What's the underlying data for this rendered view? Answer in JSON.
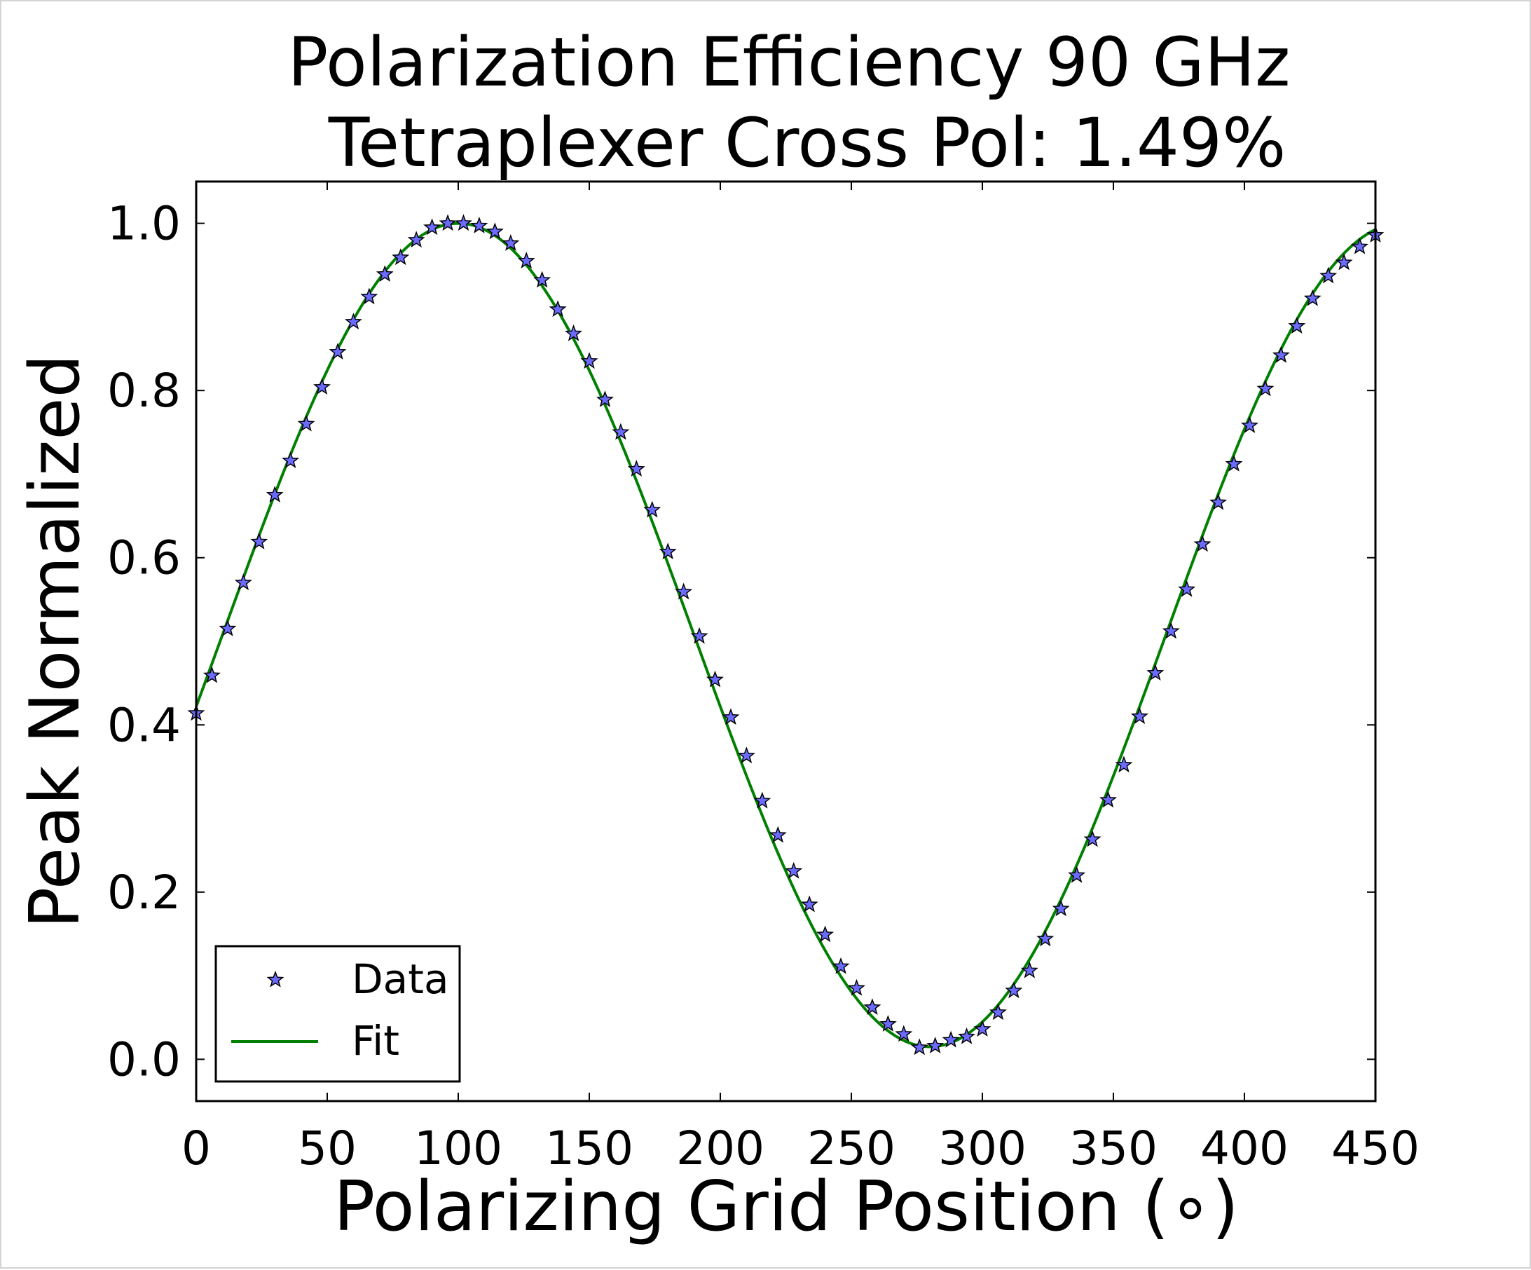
{
  "chart_data": {
    "type": "line",
    "title": "Polarization Efficiency 90 GHz",
    "subtitle": "Tetraplexer Cross Pol: 1.49%",
    "xlabel": "Polarizing Grid Position (∘)",
    "ylabel": "Peak Normalized",
    "xlim": [
      0,
      450
    ],
    "ylim": [
      -0.05,
      1.05
    ],
    "x_ticks": [
      0,
      50,
      100,
      150,
      200,
      250,
      300,
      350,
      400,
      450
    ],
    "x_tick_labels": [
      "0",
      "50",
      "100",
      "150",
      "200",
      "250",
      "300",
      "350",
      "400",
      "450"
    ],
    "y_ticks": [
      0.0,
      0.2,
      0.4,
      0.6,
      0.8,
      1.0
    ],
    "y_tick_labels": [
      "0.0",
      "0.2",
      "0.4",
      "0.6",
      "0.8",
      "1.0"
    ],
    "grid": false,
    "legend_position": "lower-left",
    "series": [
      {
        "name": "Data",
        "style": "markers-star",
        "color": "#6b6bff",
        "edge_color": "#000000",
        "x": [
          0,
          6,
          12,
          18,
          24,
          30,
          36,
          42,
          48,
          54,
          60,
          66,
          72,
          78,
          84,
          90,
          96,
          102,
          108,
          114,
          120,
          126,
          132,
          138,
          144,
          150,
          156,
          162,
          168,
          174,
          180,
          186,
          192,
          198,
          204,
          210,
          216,
          222,
          228,
          234,
          240,
          246,
          252,
          258,
          264,
          270,
          276,
          282,
          288,
          294,
          300,
          306,
          312,
          318,
          324,
          330,
          336,
          342,
          348,
          354,
          360,
          366,
          372,
          378,
          384,
          390,
          396,
          402,
          408,
          414,
          420,
          426,
          432,
          438,
          444,
          450
        ],
        "y": [
          0.414,
          0.459,
          0.515,
          0.57,
          0.619,
          0.675,
          0.716,
          0.76,
          0.804,
          0.846,
          0.882,
          0.912,
          0.939,
          0.959,
          0.98,
          0.995,
          1.0,
          1.0,
          0.997,
          0.99,
          0.976,
          0.955,
          0.932,
          0.897,
          0.868,
          0.835,
          0.789,
          0.75,
          0.706,
          0.657,
          0.607,
          0.559,
          0.506,
          0.454,
          0.409,
          0.363,
          0.309,
          0.268,
          0.225,
          0.185,
          0.149,
          0.111,
          0.085,
          0.062,
          0.042,
          0.03,
          0.014,
          0.016,
          0.023,
          0.027,
          0.036,
          0.056,
          0.082,
          0.106,
          0.144,
          0.18,
          0.22,
          0.263,
          0.31,
          0.352,
          0.41,
          0.462,
          0.512,
          0.562,
          0.616,
          0.666,
          0.712,
          0.758,
          0.802,
          0.842,
          0.877,
          0.91,
          0.937,
          0.953,
          0.972,
          0.986
        ]
      },
      {
        "name": "Fit",
        "style": "line",
        "color": "#008000",
        "model": {
          "amplitude": 0.4925,
          "offset": 0.5075,
          "period": 360,
          "phase_deg": 100
        }
      }
    ]
  }
}
